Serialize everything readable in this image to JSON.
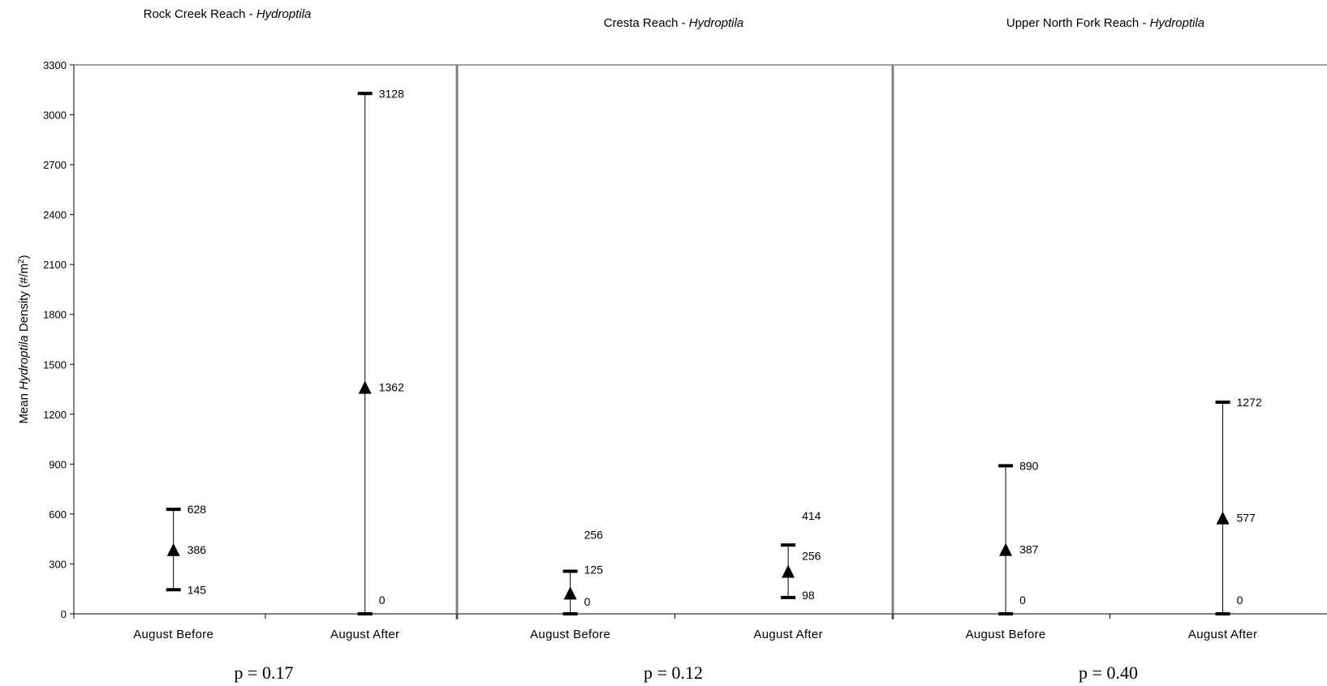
{
  "chart_data": {
    "type": "scatter",
    "description_kind": "mean with min/max range, three panels",
    "ylabel": {
      "prefix": "Mean ",
      "italic": "Hydroptila",
      "suffix": " Density (#/m",
      "sup": "2",
      "close": ")"
    },
    "ylim": [
      0,
      3300
    ],
    "yticks": [
      0,
      300,
      600,
      900,
      1200,
      1500,
      1800,
      2100,
      2400,
      2700,
      3000,
      3300
    ],
    "grid": false,
    "panels": [
      {
        "title_plain": "Rock Creek Reach - ",
        "title_italic": "Hydroptila",
        "pvalue": "p = 0.17",
        "categories": [
          {
            "label": "August Before",
            "mean": 386,
            "min": 145,
            "max": 628,
            "labels": {
              "max": "628",
              "mean": "386",
              "min": "145"
            }
          },
          {
            "label": "August After",
            "mean": 1362,
            "min": 0,
            "max": 3128,
            "labels": {
              "max": "3128",
              "mean": "1362",
              "min": "0"
            }
          }
        ]
      },
      {
        "title_plain": "Cresta Reach - ",
        "title_italic": "Hydroptila",
        "pvalue": "p = 0.12",
        "categories": [
          {
            "label": "August Before",
            "mean": 125,
            "min": 0,
            "max": 256,
            "labels": {
              "max": "256",
              "mean": "125",
              "min": "0"
            }
          },
          {
            "label": "August After",
            "mean": 256,
            "min": 98,
            "max": 414,
            "labels": {
              "max": "414",
              "mean": "256",
              "min": "98"
            }
          }
        ]
      },
      {
        "title_plain": "Upper North Fork Reach - ",
        "title_italic": "Hydroptila",
        "pvalue": "p = 0.40",
        "categories": [
          {
            "label": "August Before",
            "mean": 387,
            "min": 0,
            "max": 890,
            "labels": {
              "max": "890",
              "mean": "387",
              "min": "0"
            }
          },
          {
            "label": "August After",
            "mean": 577,
            "min": 0,
            "max": 1272,
            "labels": {
              "max": "1272",
              "mean": "577",
              "min": "0"
            }
          }
        ]
      }
    ]
  }
}
